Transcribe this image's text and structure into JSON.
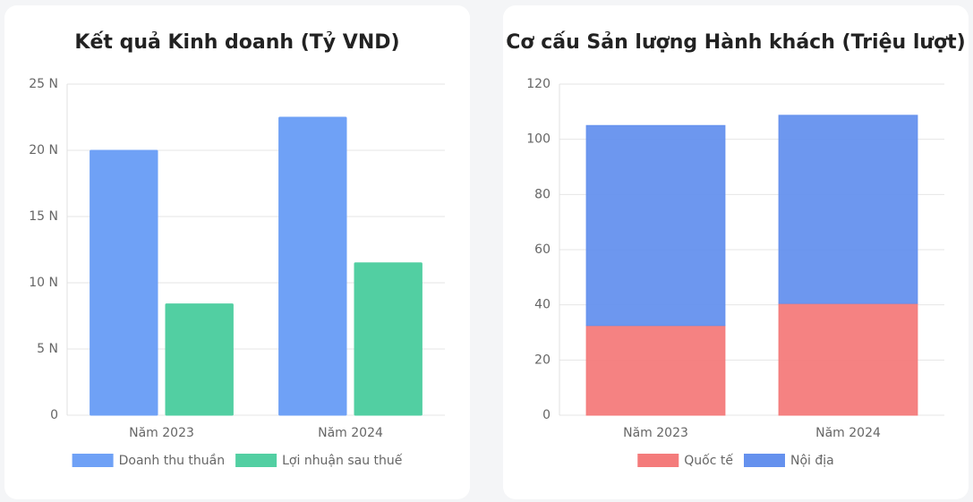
{
  "chart_data": [
    {
      "type": "bar",
      "title": "Kết quả Kinh doanh (Tỷ VND)",
      "categories": [
        "Năm 2023",
        "Năm 2024"
      ],
      "series": [
        {
          "name": "Doanh thu thuần",
          "color": "#6fa1f6",
          "values": [
            20,
            22.5
          ]
        },
        {
          "name": "Lợi nhuận sau thuế",
          "color": "#52cfa2",
          "values": [
            8.4,
            11.5
          ]
        }
      ],
      "ylim": [
        0,
        25
      ],
      "yticks": [
        0,
        {
          "value": 5,
          "label": "5 N"
        },
        {
          "value": 10,
          "label": "10 N"
        },
        {
          "value": 15,
          "label": "15 N"
        },
        {
          "value": 20,
          "label": "20 N"
        },
        {
          "value": 25,
          "label": "25 N"
        }
      ],
      "grid": true,
      "stacked": false,
      "legend": "bottom"
    },
    {
      "type": "bar",
      "title": "Cơ cấu Sản lượng Hành khách (Triệu lượt)",
      "categories": [
        "Năm 2023",
        "Năm 2024"
      ],
      "series": [
        {
          "name": "Quốc tế",
          "color": "#f47b7b",
          "values": [
            32.5,
            40.5
          ]
        },
        {
          "name": "Nội địa",
          "color": "#6591ee",
          "values": [
            72.5,
            68.2
          ]
        }
      ],
      "ylim": [
        0,
        120
      ],
      "yticks": [
        0,
        20,
        40,
        60,
        80,
        100,
        120
      ],
      "grid": true,
      "stacked": true,
      "legend": "bottom"
    }
  ]
}
